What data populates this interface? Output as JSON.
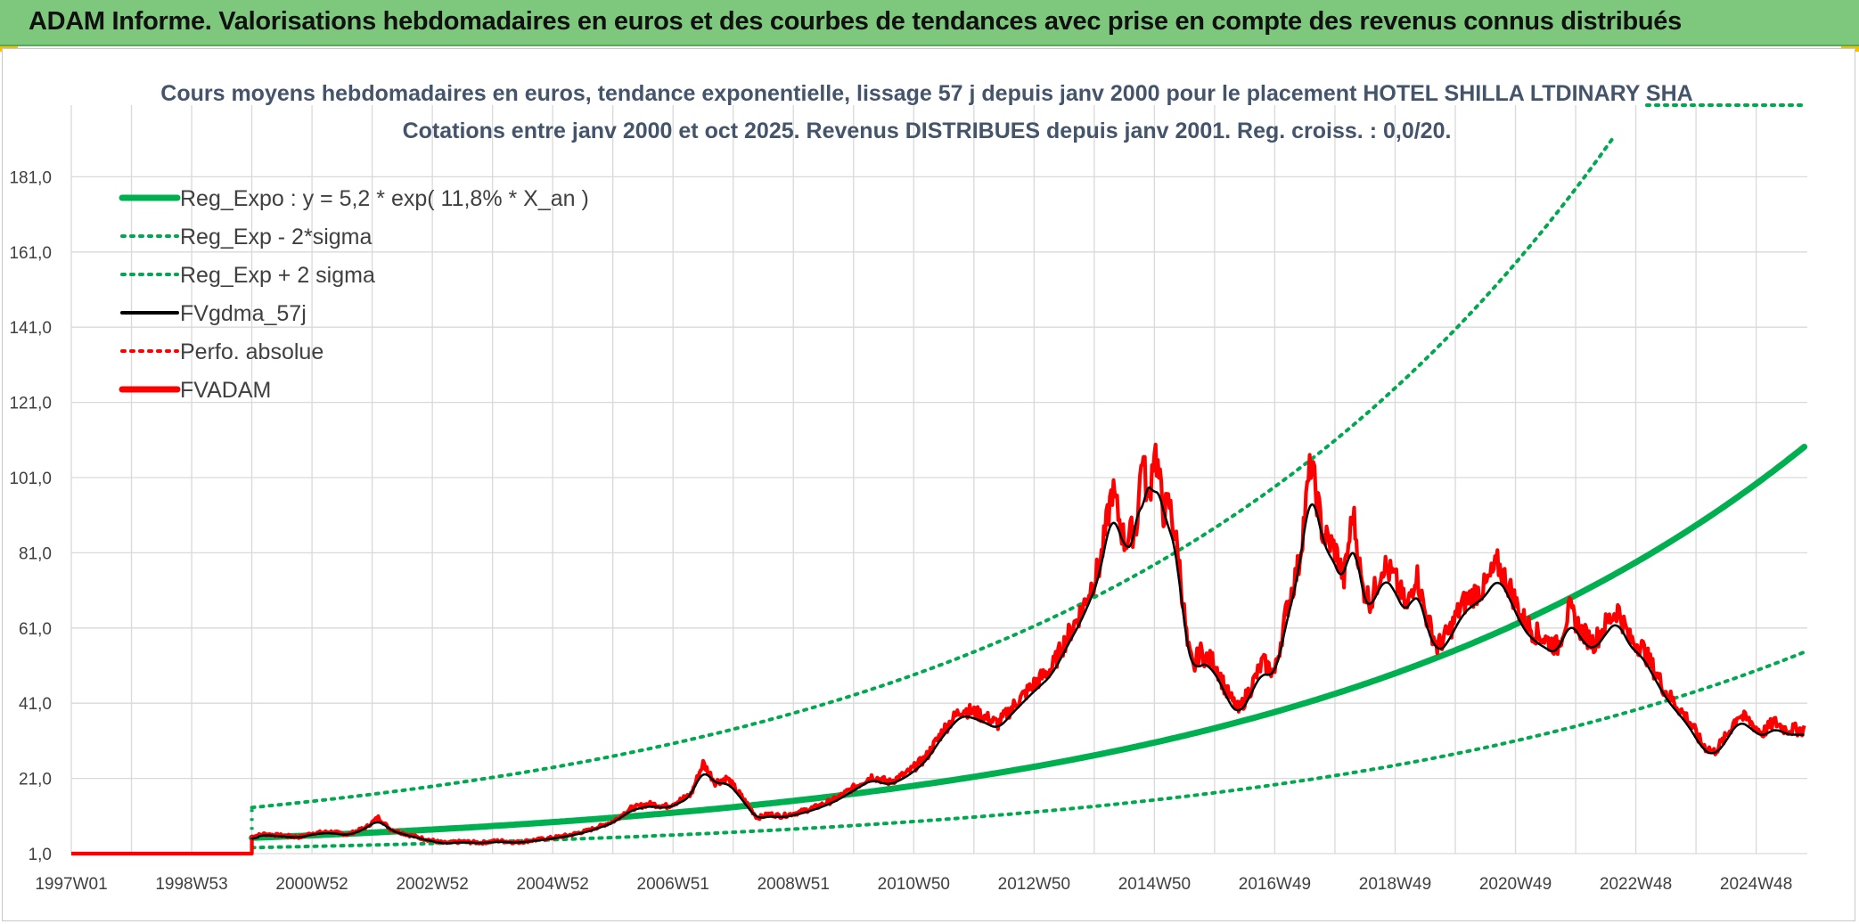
{
  "header": {
    "title": "ADAM Informe. Valorisations hebdomadaires en euros et des courbes de tendances avec prise en compte des revenus connus distribués"
  },
  "colors": {
    "banner": "#7dc87d",
    "reg_green": "#00b050",
    "dotted_green": "#00a850",
    "fv_black": "#000000",
    "adam_red": "#ff0000",
    "grid": "#d9d9d9"
  },
  "chart_data": {
    "type": "line",
    "title_line1": "Cours moyens hebdomadaires en euros, tendance exponentielle, lissage 57 j depuis janv 2000 pour le placement HOTEL SHILLA LTDINARY SHA",
    "title_line2": "Cotations entre janv 2000 et oct 2025. Revenus DISTRIBUES depuis janv 2001. Reg. croiss. : 0,0/20.",
    "xlabel": "",
    "ylabel": "",
    "xlim": [
      1997.0,
      2025.85
    ],
    "ylim": [
      1.0,
      201.0
    ],
    "y_ticks": [
      "1,0",
      "21,0",
      "41,0",
      "61,0",
      "81,0",
      "101,0",
      "121,0",
      "141,0",
      "161,0",
      "181,0"
    ],
    "y_tick_values": [
      1,
      21,
      41,
      61,
      81,
      101,
      121,
      141,
      161,
      181
    ],
    "x_ticks": [
      "1997W01",
      "1998W53",
      "2000W52",
      "2002W52",
      "2004W52",
      "2006W51",
      "2008W51",
      "2010W50",
      "2012W50",
      "2014W50",
      "2016W49",
      "2018W49",
      "2020W49",
      "2022W48",
      "2024W48"
    ],
    "x_tick_years": [
      1997.0,
      1999.0,
      2001.0,
      2003.0,
      2005.0,
      2007.0,
      2009.0,
      2011.0,
      2013.0,
      2015.0,
      2017.0,
      2019.0,
      2021.0,
      2023.0,
      2025.0
    ],
    "legend": [
      {
        "label": "Reg_Expo : y = 5,2 * exp( 11,8% *  X_an )",
        "style": "solid-thick",
        "color": "#00b050"
      },
      {
        "label": "Reg_Exp - 2*sigma",
        "style": "dotted",
        "color": "#00a850"
      },
      {
        "label": "Reg_Exp + 2 sigma",
        "style": "dotted",
        "color": "#00a850"
      },
      {
        "label": "FVgdma_57j",
        "style": "solid",
        "color": "#000000"
      },
      {
        "label": "Perfo. absolue",
        "style": "dotted",
        "color": "#ff0000"
      },
      {
        "label": "FVADAM",
        "style": "solid-thick",
        "color": "#ff0000"
      }
    ],
    "regression": {
      "a": 5.2,
      "rate": 0.118,
      "start_year": 2000.0,
      "end_year": 2025.8,
      "lower_factor": 0.5,
      "upper_factor": 2.55
    },
    "series": [
      {
        "name": "FVADAM",
        "x": [
          1997.0,
          2000.0,
          2000.0,
          2000.2,
          2000.5,
          2000.8,
          2001.0,
          2001.3,
          2001.6,
          2001.9,
          2002.1,
          2002.3,
          2002.6,
          2002.9,
          2003.2,
          2003.5,
          2003.8,
          2004.1,
          2004.4,
          2004.7,
          2005.0,
          2005.3,
          2005.6,
          2006.0,
          2006.3,
          2006.6,
          2006.9,
          2007.1,
          2007.3,
          2007.5,
          2007.7,
          2007.9,
          2008.1,
          2008.4,
          2008.6,
          2008.8,
          2009.1,
          2009.4,
          2009.7,
          2010.0,
          2010.3,
          2010.6,
          2010.9,
          2011.2,
          2011.5,
          2011.8,
          2012.1,
          2012.4,
          2012.7,
          2013.0,
          2013.3,
          2013.5,
          2013.8,
          2014.1,
          2014.3,
          2014.5,
          2014.7,
          2014.8,
          2014.9,
          2015.0,
          2015.15,
          2015.25,
          2015.4,
          2015.55,
          2015.65,
          2015.75,
          2015.85,
          2016.0,
          2016.2,
          2016.4,
          2016.6,
          2016.8,
          2017.0,
          2017.2,
          2017.4,
          2017.6,
          2017.8,
          2018.0,
          2018.15,
          2018.3,
          2018.45,
          2018.6,
          2018.8,
          2019.0,
          2019.2,
          2019.35,
          2019.5,
          2019.7,
          2019.9,
          2020.1,
          2020.3,
          2020.5,
          2020.7,
          2020.9,
          2021.1,
          2021.3,
          2021.5,
          2021.7,
          2021.9,
          2022.1,
          2022.3,
          2022.5,
          2022.7,
          2022.9,
          2023.1,
          2023.3,
          2023.5,
          2023.7,
          2023.9,
          2024.1,
          2024.3,
          2024.5,
          2024.7,
          2024.9,
          2025.1,
          2025.3,
          2025.5,
          2025.8
        ],
        "values": [
          1.0,
          1.0,
          5.5,
          6.2,
          5.8,
          5.4,
          6.4,
          6.8,
          6.1,
          8.0,
          10.6,
          7.5,
          6.0,
          4.8,
          3.8,
          4.2,
          3.9,
          4.4,
          4.0,
          4.6,
          5.2,
          6.0,
          7.2,
          9.5,
          13.0,
          14.2,
          13.6,
          15.0,
          16.8,
          25.0,
          20.0,
          21.0,
          17.0,
          10.5,
          11.5,
          11.0,
          12.0,
          13.5,
          15.5,
          18.5,
          21.5,
          20.0,
          22.5,
          26.5,
          34.0,
          39.5,
          38.0,
          35.5,
          41.0,
          46.0,
          50.5,
          57.0,
          66.0,
          78.0,
          98.0,
          84.0,
          88.0,
          108.0,
          93.0,
          110.0,
          92.0,
          94.0,
          80.0,
          56.0,
          50.0,
          55.0,
          53.0,
          52.0,
          44.0,
          39.0,
          45.0,
          52.0,
          49.0,
          66.0,
          78.0,
          105.0,
          86.0,
          82.0,
          74.0,
          92.0,
          72.0,
          68.0,
          78.0,
          74.0,
          66.0,
          76.0,
          65.0,
          56.0,
          60.0,
          67.0,
          70.0,
          72.0,
          78.0,
          72.0,
          64.0,
          60.0,
          58.0,
          56.0,
          66.0,
          60.0,
          57.0,
          62.0,
          66.0,
          58.0,
          56.0,
          50.0,
          44.0,
          40.0,
          36.0,
          30.0,
          28.0,
          32.0,
          38.0,
          36.0,
          33.0,
          36.0,
          34.0,
          34.0
        ]
      }
    ]
  }
}
